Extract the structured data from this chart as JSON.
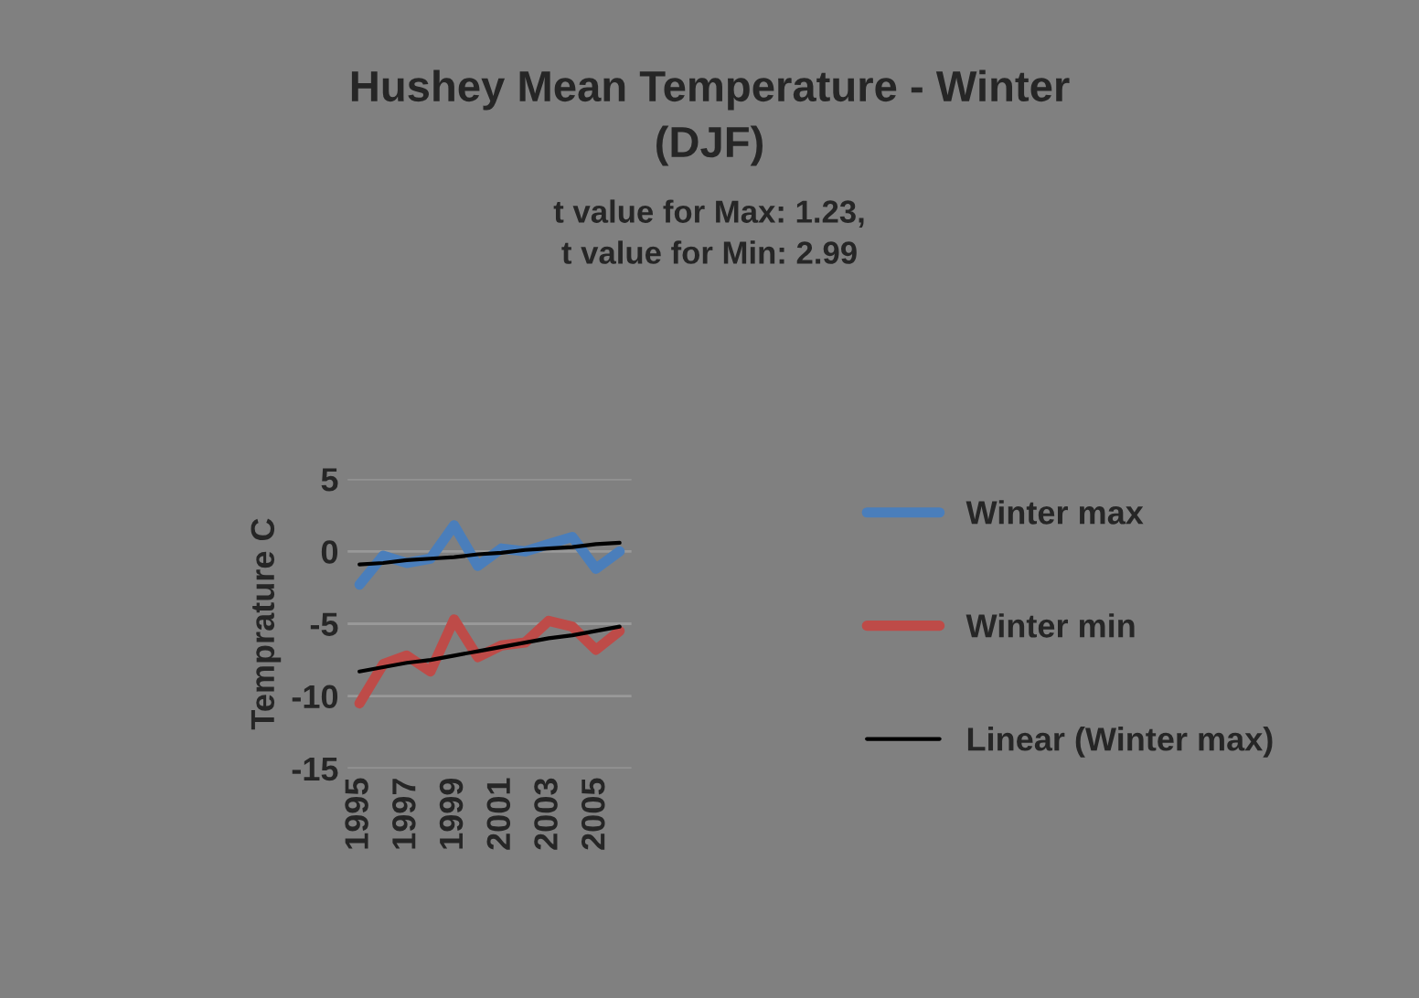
{
  "chart_data": {
    "type": "line",
    "title": "Hushey Mean Temperature - Winter\n(DJF)",
    "subtitle": "t value for Max: 1.23,\nt value for Min: 2.99",
    "ylabel": "Temprature C",
    "x": [
      1995,
      1996,
      1997,
      1998,
      1999,
      2000,
      2001,
      2002,
      2003,
      2004,
      2005,
      2006
    ],
    "series": [
      {
        "name": "Winter max",
        "color": "#4a7ebb",
        "values": [
          -2.3,
          -0.3,
          -0.8,
          -0.5,
          1.8,
          -1.0,
          0.2,
          0.0,
          0.5,
          1.0,
          -1.2,
          0.0
        ]
      },
      {
        "name": "Winter min",
        "color": "#be4b48",
        "values": [
          -10.5,
          -7.8,
          -7.2,
          -8.3,
          -4.7,
          -7.3,
          -6.5,
          -6.3,
          -4.8,
          -5.2,
          -6.8,
          -5.5
        ]
      },
      {
        "name": "Linear (Winter max)",
        "type": "line",
        "color": "#000000",
        "values": [
          -0.9,
          -0.8,
          -0.6,
          -0.5,
          -0.4,
          -0.2,
          -0.1,
          0.1,
          0.2,
          0.3,
          0.5,
          0.6
        ]
      },
      {
        "type": "line",
        "color": "#000000",
        "values": [
          -8.3,
          -8.0,
          -7.7,
          -7.5,
          -7.2,
          -6.9,
          -6.6,
          -6.3,
          -6.0,
          -5.8,
          -5.5,
          -5.2
        ]
      }
    ],
    "xlim": [
      1994.5,
      2006.5
    ],
    "xticks": [
      1995,
      1997,
      1999,
      2001,
      2003,
      2005
    ],
    "ylim": [
      -15,
      5
    ],
    "yticks": [
      -15,
      -10,
      -5,
      0,
      5
    ],
    "grid": "y",
    "legend": "right",
    "marker": "none"
  }
}
